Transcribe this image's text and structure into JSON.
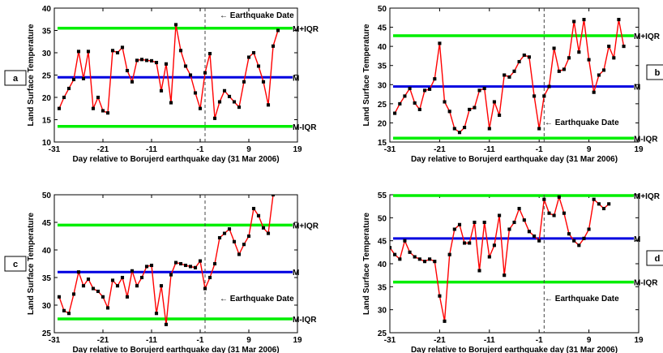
{
  "chart_data": [
    {
      "type": "line",
      "panel_label": "a",
      "xlabel": "Day relative to Borujerd earthquake day (31 Mar 2006)",
      "ylabel": "Land Surface Temperature",
      "xlim": [
        -31,
        19
      ],
      "ylim": [
        10,
        40
      ],
      "xticks": [
        -31,
        -21,
        -11,
        -1,
        9,
        19
      ],
      "yticks": [
        10,
        15,
        20,
        25,
        30,
        35,
        40
      ],
      "x_start": -30,
      "values": [
        17.5,
        20.0,
        22.0,
        24.0,
        30.3,
        24.2,
        30.3,
        17.5,
        20.0,
        17.0,
        16.5,
        30.5,
        30.0,
        31.2,
        26.0,
        23.5,
        28.3,
        28.5,
        28.3,
        28.2,
        27.8,
        21.5,
        27.5,
        18.8,
        36.3,
        30.5,
        27.0,
        25.0,
        21.0,
        17.5,
        25.5,
        29.8,
        15.3,
        19.0,
        21.5,
        20.2,
        19.0,
        17.8,
        23.5,
        29.0,
        30.0,
        27.0,
        23.5,
        18.3,
        31.5,
        35.0
      ],
      "ref_lines": [
        {
          "label": "M+IQR",
          "value": 35.5,
          "color": "#00ee00"
        },
        {
          "label": "M",
          "value": 24.5,
          "color": "#0000e0"
        },
        {
          "label": "M-IQR",
          "value": 13.5,
          "color": "#00ee00"
        }
      ],
      "event": {
        "label": "Earthquake Date",
        "x": 0
      }
    },
    {
      "type": "line",
      "panel_label": "b",
      "xlabel": "Day relative to Borujerd earthquake day (31 Mar 2006)",
      "ylabel": "Land Surface Temperature",
      "xlim": [
        -31,
        19
      ],
      "ylim": [
        15,
        50
      ],
      "xticks": [
        -31,
        -21,
        -11,
        -1,
        9,
        19
      ],
      "yticks": [
        15,
        20,
        25,
        30,
        35,
        40,
        45,
        50
      ],
      "x_start": -30,
      "values": [
        22.5,
        25.0,
        27.0,
        29.0,
        25.2,
        23.5,
        28.5,
        28.8,
        31.5,
        40.8,
        25.5,
        23.0,
        18.5,
        17.5,
        18.8,
        23.5,
        24.0,
        28.5,
        29.0,
        18.5,
        25.5,
        22.0,
        32.5,
        32.0,
        33.5,
        36.0,
        37.7,
        37.2,
        27.0,
        18.5,
        27.0,
        29.5,
        39.5,
        33.5,
        34.0,
        37.0,
        46.5,
        38.5,
        47.0,
        36.5,
        28.0,
        32.5,
        33.8,
        40.0,
        37.0,
        47.0,
        40.0
      ],
      "ref_lines": [
        {
          "label": "M+IQR",
          "value": 42.8,
          "color": "#00ee00"
        },
        {
          "label": "M",
          "value": 29.5,
          "color": "#0000e0"
        },
        {
          "label": "M-IQR",
          "value": 16.0,
          "color": "#00ee00"
        }
      ],
      "event": {
        "label": "Earthquake Date",
        "x": 0
      }
    },
    {
      "type": "line",
      "panel_label": "c",
      "xlabel": "Day relative to Borujerd earthquake day (31 Mar 2006)",
      "ylabel": "Land Surface Temperature",
      "xlim": [
        -31,
        19
      ],
      "ylim": [
        25,
        50
      ],
      "xticks": [
        -31,
        -21,
        -11,
        -1,
        9,
        19
      ],
      "yticks": [
        25,
        30,
        35,
        40,
        45,
        50
      ],
      "x_start": -30,
      "values": [
        31.5,
        29.0,
        28.5,
        32.0,
        36.0,
        33.5,
        34.7,
        33.0,
        32.5,
        31.5,
        29.5,
        34.5,
        33.5,
        35.0,
        31.5,
        36.2,
        33.5,
        35.0,
        37.0,
        37.2,
        28.5,
        33.5,
        26.5,
        35.5,
        37.7,
        37.5,
        37.2,
        37.0,
        36.8,
        38.0,
        33.0,
        35.0,
        37.5,
        42.2,
        43.0,
        43.8,
        41.5,
        39.2,
        41.0,
        42.5,
        47.5,
        46.2,
        44.0,
        43.0,
        50.0
      ],
      "ref_lines": [
        {
          "label": "M+IQR",
          "value": 44.5,
          "color": "#00ee00"
        },
        {
          "label": "M",
          "value": 36.0,
          "color": "#0000e0"
        },
        {
          "label": "M-IQR",
          "value": 27.5,
          "color": "#00ee00"
        }
      ],
      "event": {
        "label": "Earthquake Date",
        "x": 0
      }
    },
    {
      "type": "line",
      "panel_label": "d",
      "xlabel": "Day relative to Borujerd earthquake day (31 Mar 2006)",
      "ylabel": "Land Surface Temperature",
      "xlim": [
        -31,
        19
      ],
      "ylim": [
        25,
        55
      ],
      "xticks": [
        -31,
        -21,
        -11,
        -1,
        9,
        19
      ],
      "yticks": [
        25,
        30,
        35,
        40,
        45,
        50,
        55
      ],
      "x_start": -31,
      "values": [
        43.5,
        42.0,
        41.0,
        45.0,
        42.5,
        41.5,
        41.0,
        40.5,
        41.0,
        40.5,
        33.0,
        27.5,
        42.0,
        47.5,
        48.5,
        44.5,
        44.5,
        49.0,
        38.5,
        49.0,
        41.5,
        44.0,
        50.5,
        37.5,
        47.5,
        49.0,
        52.0,
        49.5,
        47.0,
        46.0,
        45.0,
        54.0,
        51.0,
        50.5,
        54.5,
        51.0,
        46.5,
        45.0,
        44.0,
        45.5,
        47.5,
        54.0,
        53.0,
        52.0,
        53.0
      ],
      "ref_lines": [
        {
          "label": "M+IQR",
          "value": 55.0,
          "color": "#00ee00"
        },
        {
          "label": "M",
          "value": 45.5,
          "color": "#0000e0"
        },
        {
          "label": "M-IQR",
          "value": 36.0,
          "color": "#00ee00"
        }
      ],
      "event": {
        "label": "Earthquake Date",
        "x": 0
      }
    }
  ]
}
